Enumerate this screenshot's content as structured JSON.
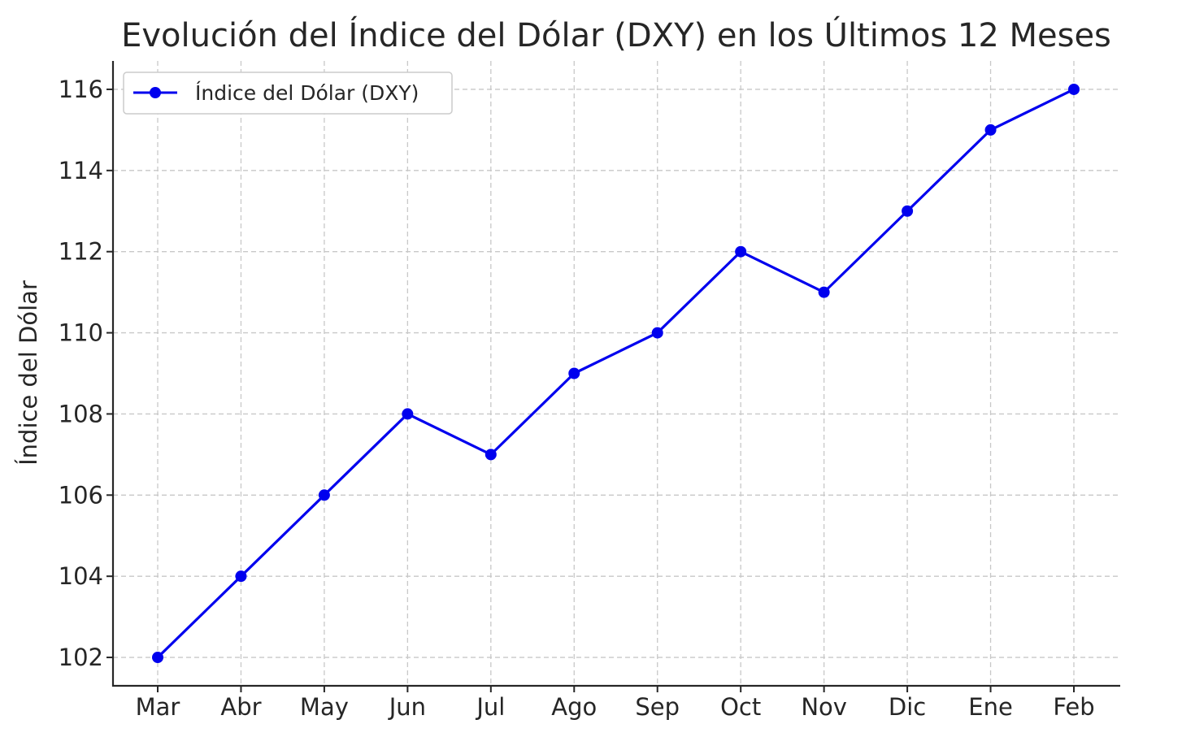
{
  "chart_data": {
    "type": "line",
    "title": "Evolución del Índice del Dólar (DXY) en los Últimos 12 Meses",
    "xlabel": "",
    "ylabel": "Índice del Dólar",
    "categories": [
      "Mar",
      "Abr",
      "May",
      "Jun",
      "Jul",
      "Ago",
      "Sep",
      "Oct",
      "Nov",
      "Dic",
      "Ene",
      "Feb"
    ],
    "series": [
      {
        "name": "Índice del Dólar (DXY)",
        "values": [
          102,
          104,
          106,
          108,
          107,
          109,
          110,
          112,
          111,
          113,
          115,
          116
        ],
        "color": "#0000ee",
        "marker": "circle"
      }
    ],
    "yticks": [
      102,
      104,
      106,
      108,
      110,
      112,
      114,
      116
    ],
    "ylim": [
      101.3,
      116.7
    ],
    "grid": true,
    "legend": "top-left"
  }
}
